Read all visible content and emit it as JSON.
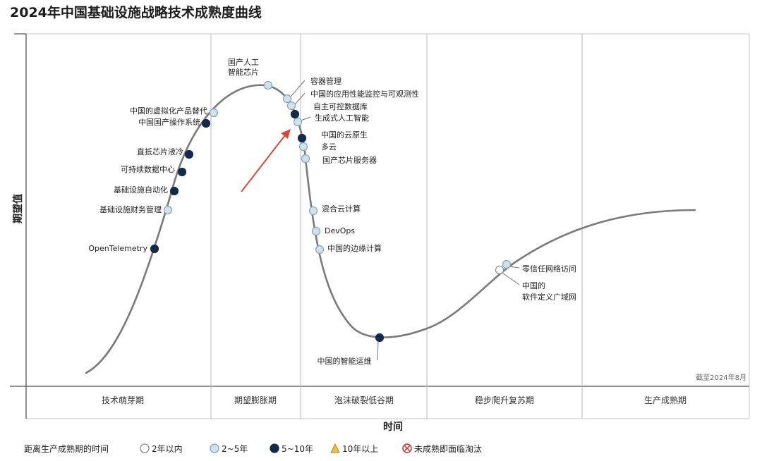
{
  "chart_data": {
    "type": "hype-cycle",
    "title": "2024年中国基础设施战略技术成熟度曲线",
    "xlabel": "时间",
    "ylabel": "期望值",
    "as_of": "截至2024年8月",
    "phases": [
      "技术萌芽期",
      "期望膨胀期",
      "泡沫破裂低谷期",
      "稳步爬升复苏期",
      "生产成熟期"
    ],
    "legend": {
      "title": "距离生产成熟期的时间",
      "items": [
        {
          "key": "lt2",
          "label": "2年以内",
          "fill": "#ffffff",
          "stroke": "#888888",
          "shape": "circle"
        },
        {
          "key": "2to5",
          "label": "2~5年",
          "fill": "#cfe3ea",
          "stroke": "#8aa4ad",
          "shape": "circle"
        },
        {
          "key": "5to10",
          "label": "5~10年",
          "fill": "#142a4c",
          "stroke": "#142a4c",
          "shape": "circle"
        },
        {
          "key": "gt10",
          "label": "10年以上",
          "fill": "#e8c04a",
          "stroke": "#b08a20",
          "shape": "triangle"
        },
        {
          "key": "obsolete",
          "label": "未成熟即面临淘汰",
          "fill": "#ffffff",
          "stroke": "#cc2a2a",
          "shape": "xcircle"
        }
      ]
    },
    "technologies": [
      {
        "name": "OpenTelemetry",
        "phase": "技术萌芽期",
        "category": "5to10"
      },
      {
        "name": "基础设施财务管理",
        "phase": "技术萌芽期",
        "category": "2to5"
      },
      {
        "name": "基础设施自动化",
        "phase": "技术萌芽期",
        "category": "5to10"
      },
      {
        "name": "可持续数据中心",
        "phase": "技术萌芽期",
        "category": "5to10"
      },
      {
        "name": "直抵芯片液冷",
        "phase": "技术萌芽期",
        "category": "5to10"
      },
      {
        "name": "中国国产操作系统",
        "phase": "技术萌芽期",
        "category": "5to10"
      },
      {
        "name": "中国的虚拟化产品替代",
        "phase": "期望膨胀期",
        "category": "2to5"
      },
      {
        "name": "国产人工智能芯片",
        "display": [
          "国产人工",
          "智能芯片"
        ],
        "phase": "期望膨胀期",
        "category": "2to5"
      },
      {
        "name": "容器管理",
        "phase": "期望膨胀期",
        "category": "2to5"
      },
      {
        "name": "中国的应用性能监控与可观测性",
        "phase": "期望膨胀期",
        "category": "2to5"
      },
      {
        "name": "自主可控数据库",
        "phase": "期望膨胀期",
        "category": "5to10"
      },
      {
        "name": "生成式人工智能",
        "phase": "期望膨胀期",
        "category": "2to5"
      },
      {
        "name": "中国的云原生",
        "phase": "泡沫破裂低谷期",
        "category": "5to10"
      },
      {
        "name": "多云",
        "phase": "泡沫破裂低谷期",
        "category": "2to5"
      },
      {
        "name": "国产芯片服务器",
        "phase": "泡沫破裂低谷期",
        "category": "2to5"
      },
      {
        "name": "混合云计算",
        "phase": "泡沫破裂低谷期",
        "category": "2to5"
      },
      {
        "name": "DevOps",
        "phase": "泡沫破裂低谷期",
        "category": "2to5"
      },
      {
        "name": "中国的边缘计算",
        "phase": "泡沫破裂低谷期",
        "category": "2to5"
      },
      {
        "name": "中国的智能运维",
        "phase": "泡沫破裂低谷期",
        "category": "5to10"
      },
      {
        "name": "零信任网络访问",
        "phase": "稳步爬升复苏期",
        "category": "2to5"
      },
      {
        "name": "中国的软件定义广域网",
        "display": [
          "中国的",
          "软件定义广域网"
        ],
        "phase": "稳步爬升复苏期",
        "category": "lt2"
      }
    ]
  }
}
